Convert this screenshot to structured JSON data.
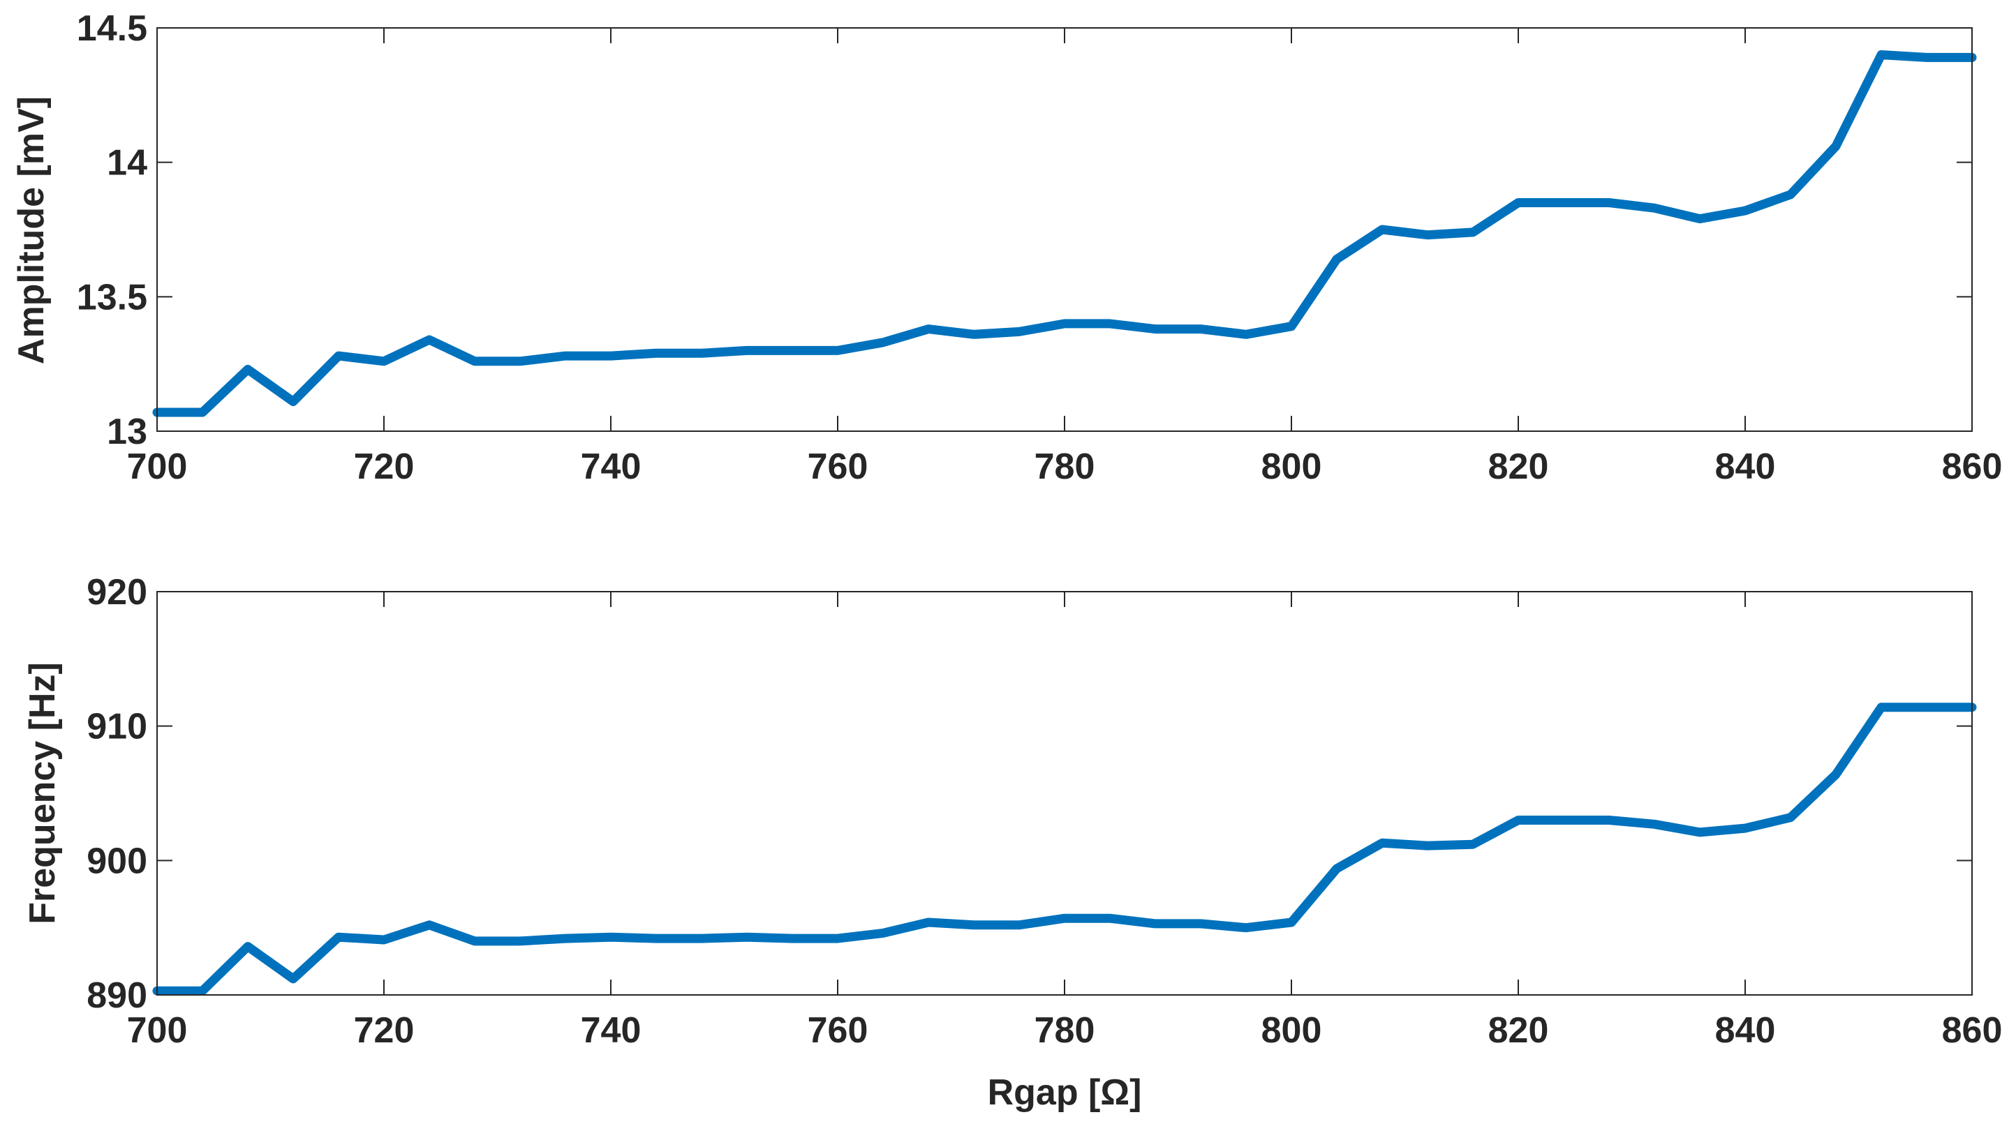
{
  "chart_data": [
    {
      "type": "line",
      "title": "",
      "xlabel": "",
      "ylabel": "Amplitude [mV]",
      "xlim": [
        700,
        860
      ],
      "ylim": [
        13,
        14.5
      ],
      "xticks": [
        "700",
        "720",
        "740",
        "760",
        "780",
        "800",
        "820",
        "840",
        "860"
      ],
      "yticks": [
        "13",
        "13.5",
        "14",
        "14.5"
      ],
      "grid": false,
      "color": "#0072BD",
      "series": [
        {
          "x": [
            700,
            704,
            708,
            712,
            716,
            720,
            724,
            728,
            732,
            736,
            740,
            744,
            748,
            752,
            756,
            760,
            764,
            768,
            772,
            776,
            780,
            784,
            788,
            792,
            796,
            800,
            804,
            808,
            812,
            816,
            820,
            824,
            828,
            832,
            836,
            840,
            844,
            848,
            852,
            856,
            860
          ],
          "values": [
            13.07,
            13.07,
            13.23,
            13.11,
            13.28,
            13.26,
            13.34,
            13.26,
            13.26,
            13.28,
            13.28,
            13.29,
            13.29,
            13.3,
            13.3,
            13.3,
            13.33,
            13.38,
            13.36,
            13.37,
            13.4,
            13.4,
            13.38,
            13.38,
            13.36,
            13.39,
            13.64,
            13.75,
            13.73,
            13.74,
            13.85,
            13.85,
            13.85,
            13.83,
            13.79,
            13.82,
            13.88,
            14.06,
            14.4,
            14.39,
            14.39
          ]
        }
      ]
    },
    {
      "type": "line",
      "title": "",
      "xlabel": "Rgap [Ω]",
      "ylabel": "Frequency [Hz]",
      "xlim": [
        700,
        860
      ],
      "ylim": [
        890,
        920
      ],
      "xticks": [
        "700",
        "720",
        "740",
        "760",
        "780",
        "800",
        "820",
        "840",
        "860"
      ],
      "yticks": [
        "890",
        "900",
        "910",
        "920"
      ],
      "grid": false,
      "color": "#0072BD",
      "series": [
        {
          "x": [
            700,
            704,
            708,
            712,
            716,
            720,
            724,
            728,
            732,
            736,
            740,
            744,
            748,
            752,
            756,
            760,
            764,
            768,
            772,
            776,
            780,
            784,
            788,
            792,
            796,
            800,
            804,
            808,
            812,
            816,
            820,
            824,
            828,
            832,
            836,
            840,
            844,
            848,
            852,
            856,
            860
          ],
          "values": [
            890.3,
            890.3,
            893.6,
            891.2,
            894.3,
            894.1,
            895.2,
            894.0,
            894.0,
            894.2,
            894.3,
            894.2,
            894.2,
            894.3,
            894.2,
            894.2,
            894.6,
            895.4,
            895.2,
            895.2,
            895.7,
            895.7,
            895.3,
            895.3,
            895.0,
            895.4,
            899.4,
            901.3,
            901.1,
            901.2,
            903.0,
            903.0,
            903.0,
            902.7,
            902.1,
            902.4,
            903.2,
            906.4,
            911.4,
            911.4,
            911.4
          ]
        }
      ]
    }
  ]
}
